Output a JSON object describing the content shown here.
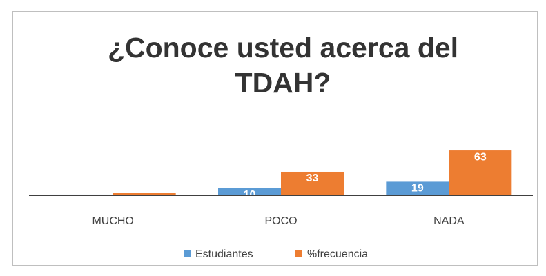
{
  "chart_data": {
    "type": "bar",
    "title": "¿Conoce usted acerca del TDAH?",
    "categories": [
      "MUCHO",
      "POCO",
      "NADA"
    ],
    "series": [
      {
        "name": "Estudiantes",
        "color": "#5b9bd5",
        "values": [
          1,
          10,
          19
        ]
      },
      {
        "name": "%frecuencia",
        "color": "#ed7d31",
        "values": [
          3,
          33,
          63
        ]
      }
    ],
    "ylim": [
      0,
      65
    ],
    "data_labels": true,
    "legend": "bottom"
  }
}
